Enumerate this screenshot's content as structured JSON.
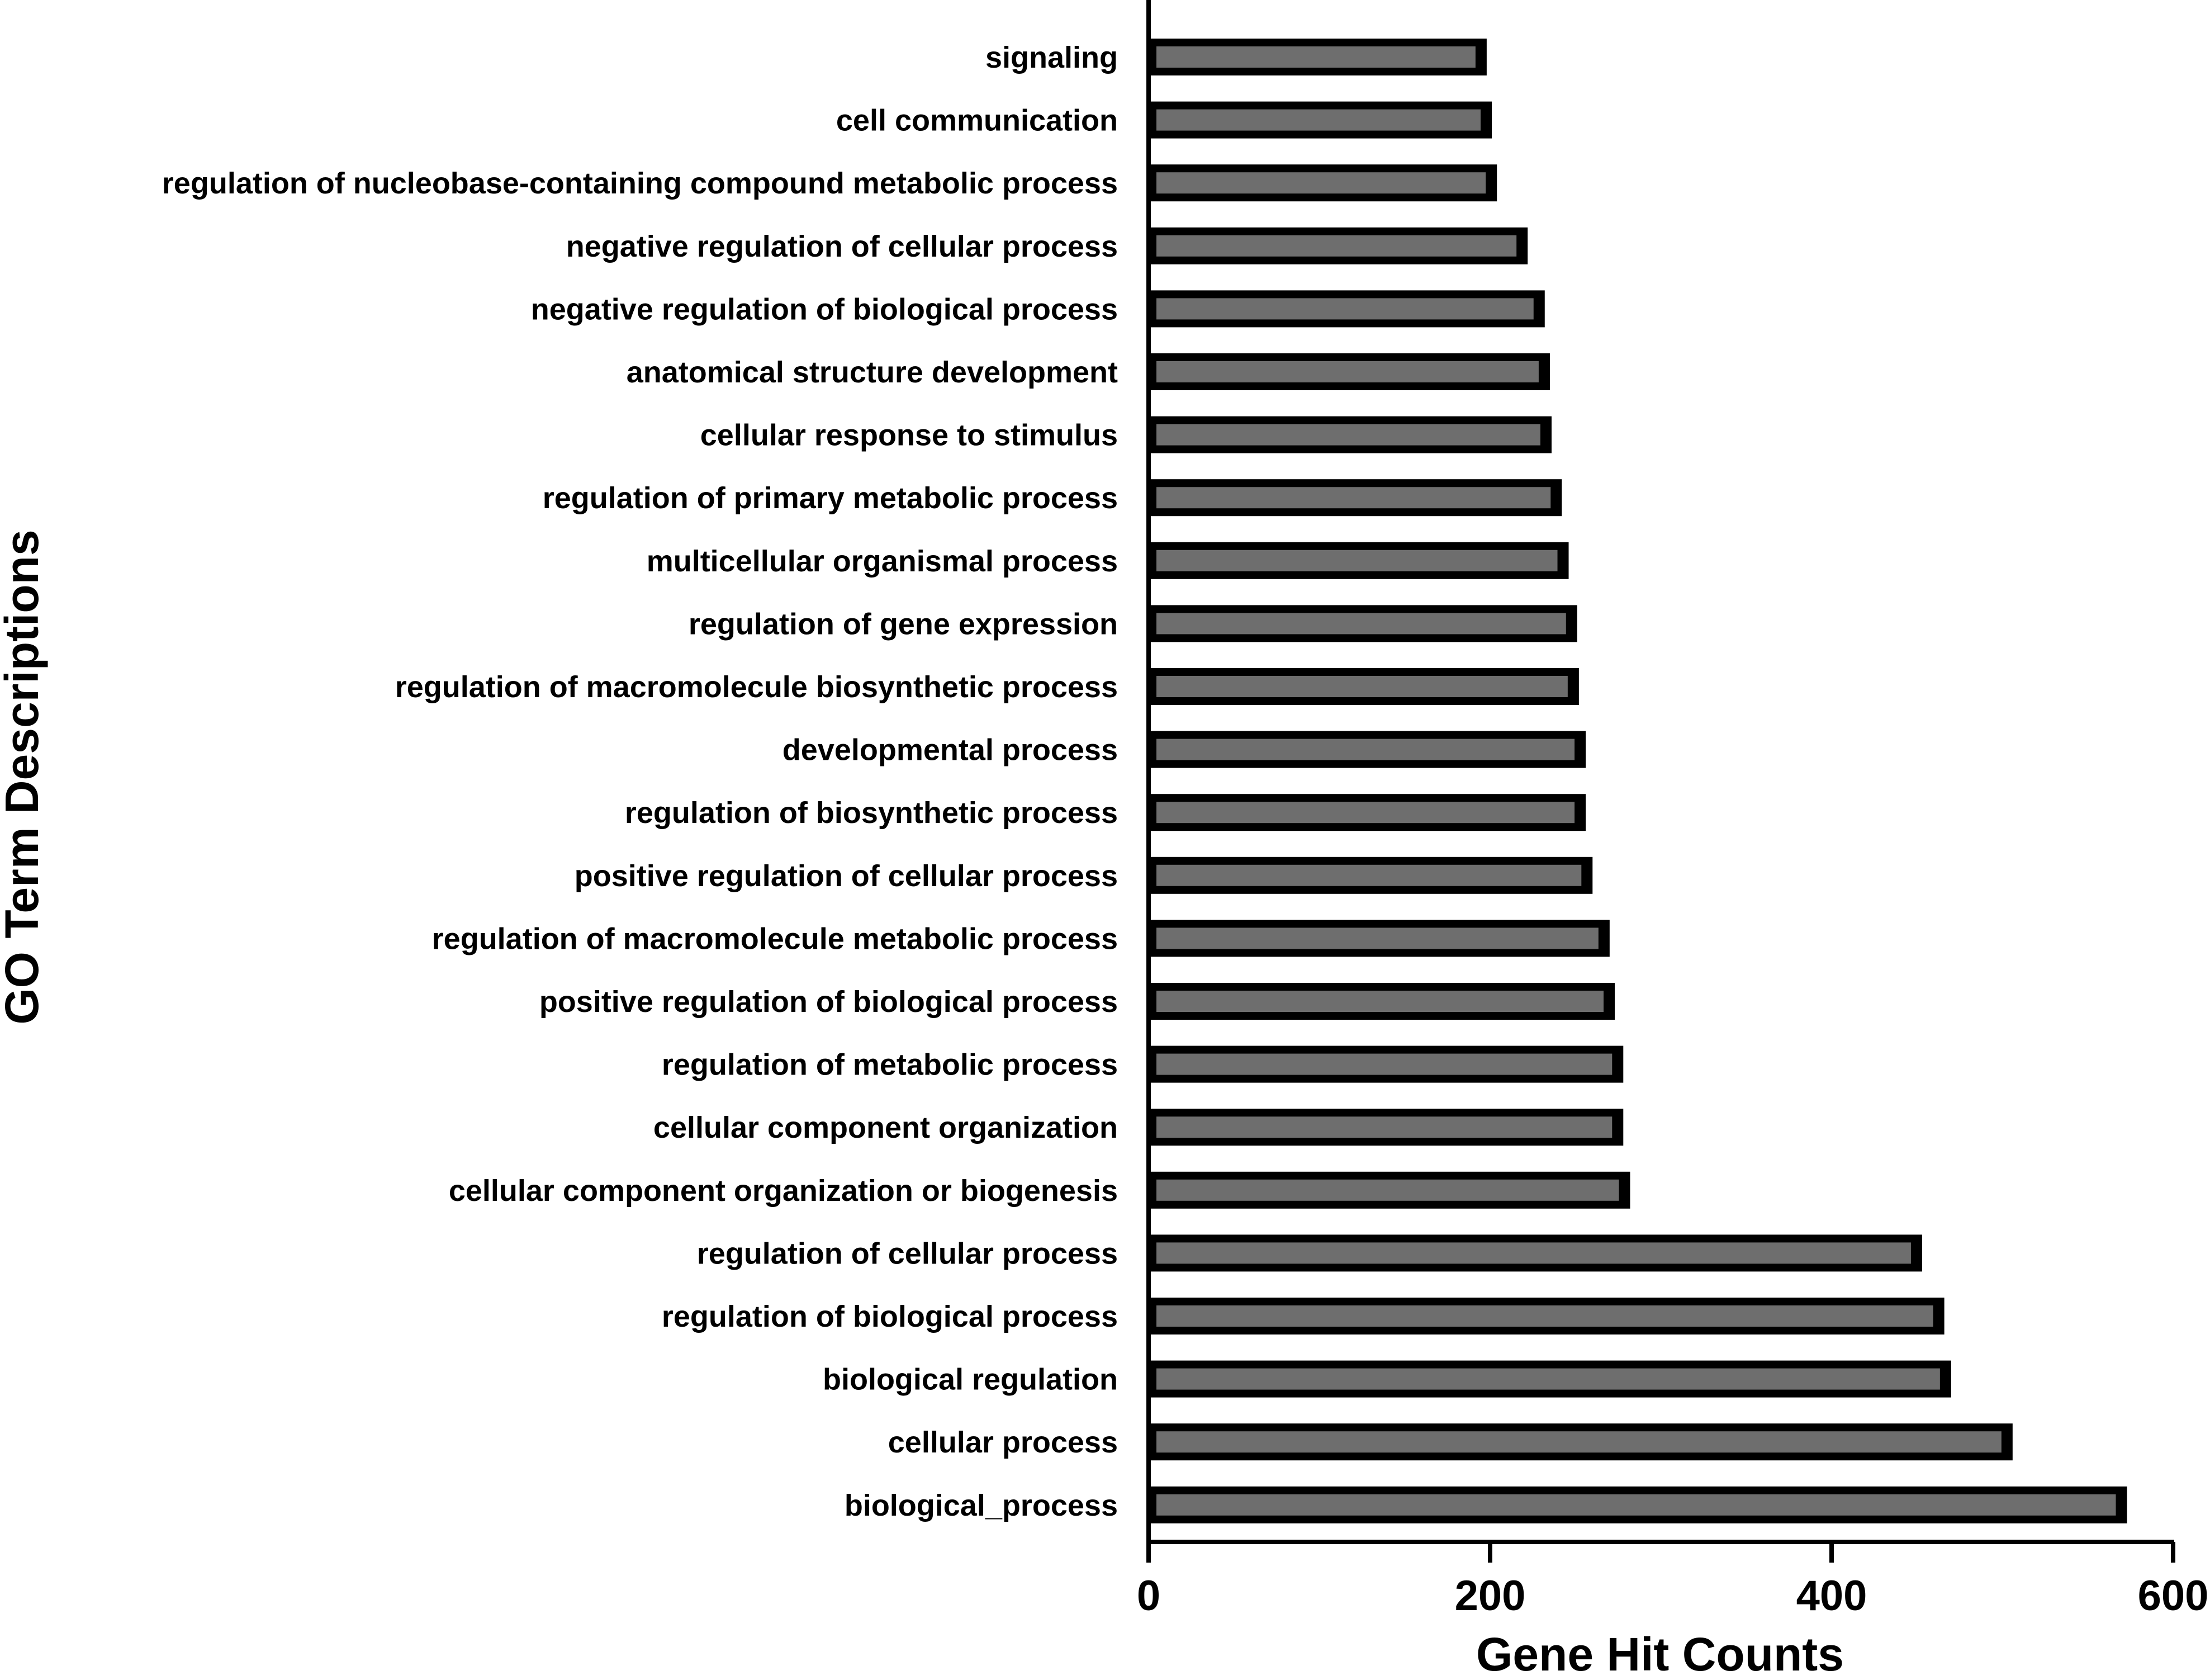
{
  "chart_data": {
    "type": "bar",
    "orientation": "horizontal",
    "xlabel": "Gene Hit  Counts",
    "ylabel": "GO Term  Descriptions",
    "xlim": [
      0,
      600
    ],
    "xticks": [
      0,
      200,
      400,
      600
    ],
    "grid": false,
    "legend": "none",
    "colors": {
      "bar_outline": "#000000",
      "bar_fill": "#6e6e6e"
    },
    "categories": [
      "signaling",
      "cell communication",
      "regulation of nucleobase-containing compound metabolic process",
      "negative regulation of cellular process",
      "negative regulation of biological process",
      "anatomical structure development",
      "cellular response to stimulus",
      "regulation of primary metabolic process",
      "multicellular organismal process",
      "regulation of gene expression",
      "regulation of macromolecule biosynthetic process",
      "developmental process",
      "regulation of biosynthetic process",
      "positive regulation of cellular process",
      "regulation of macromolecule metabolic process",
      "positive regulation of biological process",
      "regulation of metabolic process",
      "cellular component organization",
      "cellular component organization or biogenesis",
      "regulation of cellular process",
      "regulation of biological process",
      "biological regulation",
      "cellular process",
      "biological_process"
    ],
    "values": [
      198,
      201,
      204,
      222,
      232,
      235,
      236,
      242,
      246,
      251,
      252,
      256,
      256,
      260,
      270,
      273,
      278,
      278,
      282,
      453,
      466,
      470,
      506,
      573
    ]
  }
}
